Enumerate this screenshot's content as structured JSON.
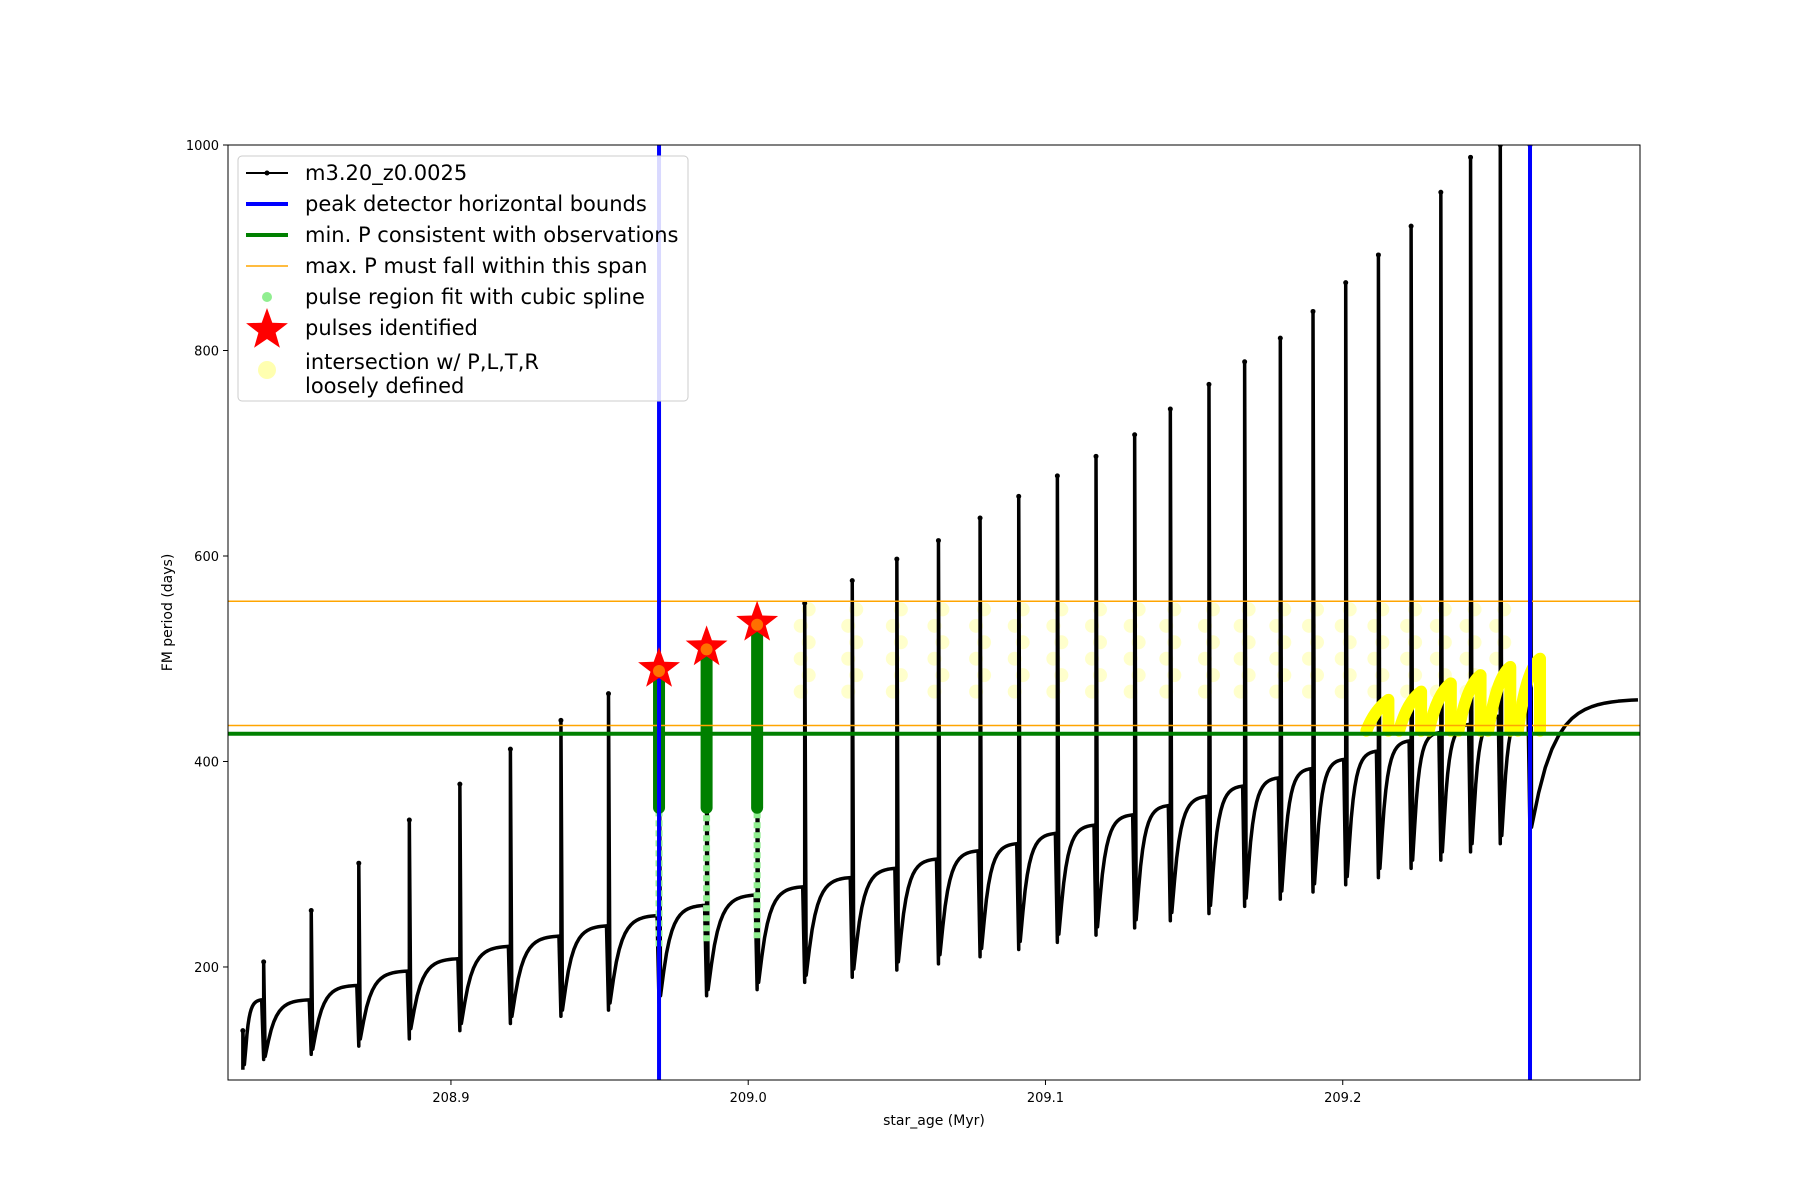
{
  "chart_data": {
    "type": "line",
    "xlabel": "star_age (Myr)",
    "ylabel": "FM period (days)",
    "xlim": [
      208.825,
      209.3
    ],
    "ylim": [
      90,
      1000
    ],
    "x_ticks": [
      208.9,
      209.0,
      209.1,
      209.2
    ],
    "x_tick_labels": [
      "208.9",
      "209.0",
      "209.1",
      "209.2"
    ],
    "y_ticks": [
      200,
      400,
      600,
      800,
      1000
    ],
    "y_tick_labels": [
      "200",
      "400",
      "600",
      "800",
      "1000"
    ],
    "grid": false,
    "legend_position": "upper-left",
    "legend": [
      {
        "key": "model",
        "label": "m3.20_z0.0025",
        "style": "line-marker",
        "color": "#000000"
      },
      {
        "key": "bounds",
        "label": "peak detector horizontal bounds",
        "style": "thick-line",
        "color": "#0000ff"
      },
      {
        "key": "minp",
        "label": "min. P consistent with observations",
        "style": "thick-line",
        "color": "#008000"
      },
      {
        "key": "maxp",
        "label": "max. P must fall within this span",
        "style": "thin-line",
        "color": "#ffa500"
      },
      {
        "key": "spline",
        "label": "pulse region fit with cubic spline",
        "style": "dot",
        "color": "#90ee90"
      },
      {
        "key": "pulses",
        "label": "pulses identified",
        "style": "star",
        "color": "#ff0000"
      },
      {
        "key": "intersect",
        "label": "intersection w/ P,L,T,R\nloosely defined",
        "style": "dot-large",
        "color": "#ffffb0"
      }
    ],
    "series": [
      {
        "name": "m3.20_z0.0025",
        "color": "#000000",
        "pulses": [
          {
            "x": 208.83,
            "start": 105,
            "plateau": 168,
            "spike": 138,
            "dip": 100
          },
          {
            "x": 208.837,
            "start": 113,
            "plateau": 168,
            "spike": 205,
            "dip": 110
          },
          {
            "x": 208.853,
            "start": 120,
            "plateau": 182,
            "spike": 255,
            "dip": 115
          },
          {
            "x": 208.869,
            "start": 130,
            "plateau": 196,
            "spike": 301,
            "dip": 123
          },
          {
            "x": 208.886,
            "start": 140,
            "plateau": 208,
            "spike": 343,
            "dip": 130
          },
          {
            "x": 208.903,
            "start": 145,
            "plateau": 220,
            "spike": 378,
            "dip": 138
          },
          {
            "x": 208.92,
            "start": 152,
            "plateau": 230,
            "spike": 412,
            "dip": 145
          },
          {
            "x": 208.937,
            "start": 158,
            "plateau": 240,
            "spike": 440,
            "dip": 152
          },
          {
            "x": 208.953,
            "start": 165,
            "plateau": 250,
            "spike": 466,
            "dip": 158
          },
          {
            "x": 208.97,
            "start": 172,
            "plateau": 260,
            "spike": 495,
            "dip": 165
          },
          {
            "x": 208.986,
            "start": 178,
            "plateau": 270,
            "spike": 510,
            "dip": 172
          },
          {
            "x": 209.003,
            "start": 185,
            "plateau": 278,
            "spike": 535,
            "dip": 178
          },
          {
            "x": 209.019,
            "start": 192,
            "plateau": 287,
            "spike": 554,
            "dip": 185
          },
          {
            "x": 209.035,
            "start": 198,
            "plateau": 296,
            "spike": 576,
            "dip": 190
          },
          {
            "x": 209.05,
            "start": 205,
            "plateau": 305,
            "spike": 597,
            "dip": 197
          },
          {
            "x": 209.064,
            "start": 212,
            "plateau": 313,
            "spike": 615,
            "dip": 203
          },
          {
            "x": 209.078,
            "start": 218,
            "plateau": 320,
            "spike": 637,
            "dip": 210
          },
          {
            "x": 209.091,
            "start": 225,
            "plateau": 330,
            "spike": 658,
            "dip": 217
          },
          {
            "x": 209.104,
            "start": 232,
            "plateau": 338,
            "spike": 678,
            "dip": 224
          },
          {
            "x": 209.117,
            "start": 239,
            "plateau": 348,
            "spike": 697,
            "dip": 231
          },
          {
            "x": 209.13,
            "start": 246,
            "plateau": 357,
            "spike": 718,
            "dip": 238
          },
          {
            "x": 209.142,
            "start": 253,
            "plateau": 366,
            "spike": 743,
            "dip": 245
          },
          {
            "x": 209.155,
            "start": 260,
            "plateau": 376,
            "spike": 767,
            "dip": 252
          },
          {
            "x": 209.167,
            "start": 267,
            "plateau": 384,
            "spike": 789,
            "dip": 259
          },
          {
            "x": 209.179,
            "start": 274,
            "plateau": 393,
            "spike": 812,
            "dip": 266
          },
          {
            "x": 209.19,
            "start": 281,
            "plateau": 402,
            "spike": 838,
            "dip": 273
          },
          {
            "x": 209.201,
            "start": 288,
            "plateau": 410,
            "spike": 866,
            "dip": 280
          },
          {
            "x": 209.212,
            "start": 296,
            "plateau": 420,
            "spike": 893,
            "dip": 287
          },
          {
            "x": 209.223,
            "start": 304,
            "plateau": 428,
            "spike": 921,
            "dip": 296
          },
          {
            "x": 209.233,
            "start": 312,
            "plateau": 436,
            "spike": 954,
            "dip": 304
          },
          {
            "x": 209.243,
            "start": 320,
            "plateau": 444,
            "spike": 988,
            "dip": 312
          },
          {
            "x": 209.253,
            "start": 328,
            "plateau": 452,
            "spike": 1000,
            "dip": 320
          },
          {
            "x": 209.263,
            "start": 336,
            "plateau": 460,
            "spike": 1000,
            "dip": 328
          }
        ]
      }
    ],
    "peak_detector_bounds_x": [
      208.97,
      209.263
    ],
    "min_p": 427,
    "max_p_span": [
      435,
      556
    ],
    "pulses_identified": [
      {
        "x": 208.97,
        "y": 490
      },
      {
        "x": 208.986,
        "y": 511
      },
      {
        "x": 209.003,
        "y": 535
      }
    ],
    "spline_regions": [
      {
        "x": 208.97,
        "ymin": 220,
        "ymax": 495
      },
      {
        "x": 208.986,
        "ymin": 225,
        "ymax": 510
      },
      {
        "x": 209.003,
        "ymin": 228,
        "ymax": 532
      }
    ],
    "intersections_loose_x": [
      209.019,
      209.035,
      209.05,
      209.064,
      209.078,
      209.091,
      209.104,
      209.117,
      209.13,
      209.142,
      209.155,
      209.167,
      209.179,
      209.19,
      209.201,
      209.212,
      209.223,
      209.233,
      209.243,
      209.253
    ],
    "intersection_band": [
      460,
      556
    ]
  }
}
